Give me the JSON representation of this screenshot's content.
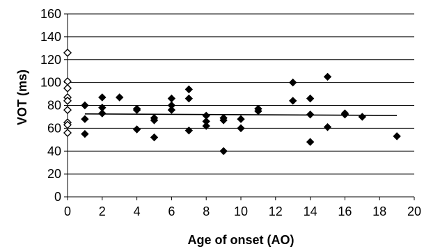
{
  "chart_data": {
    "type": "scatter",
    "xlabel": "Age of onset (AO)",
    "ylabel": "VOT (ms)",
    "xlim": [
      0,
      20
    ],
    "ylim": [
      0,
      160
    ],
    "x_ticks": [
      0,
      2,
      4,
      6,
      8,
      10,
      12,
      14,
      16,
      18,
      20
    ],
    "y_ticks": [
      0,
      20,
      40,
      60,
      80,
      100,
      120,
      140,
      160
    ],
    "grid": "horizontal",
    "series": [
      {
        "marker": "open-diamond",
        "color": "#000000",
        "points": [
          [
            0,
            126
          ],
          [
            0,
            101
          ],
          [
            0,
            95
          ],
          [
            0,
            87
          ],
          [
            0,
            84
          ],
          [
            0,
            76
          ],
          [
            0,
            65
          ],
          [
            0,
            63
          ],
          [
            0,
            56
          ]
        ]
      },
      {
        "marker": "filled-diamond",
        "color": "#000000",
        "points": [
          [
            1,
            80
          ],
          [
            1,
            68
          ],
          [
            1,
            55
          ],
          [
            2,
            87
          ],
          [
            2,
            78
          ],
          [
            2,
            73
          ],
          [
            3,
            87
          ],
          [
            4,
            77
          ],
          [
            4,
            76
          ],
          [
            4,
            59
          ],
          [
            5,
            69
          ],
          [
            5,
            67
          ],
          [
            5,
            52
          ],
          [
            6,
            86
          ],
          [
            6,
            80
          ],
          [
            6,
            76
          ],
          [
            7,
            94
          ],
          [
            7,
            86
          ],
          [
            7,
            58
          ],
          [
            8,
            71
          ],
          [
            8,
            66
          ],
          [
            8,
            62
          ],
          [
            9,
            69
          ],
          [
            9,
            67
          ],
          [
            9,
            40
          ],
          [
            10,
            68
          ],
          [
            10,
            60
          ],
          [
            11,
            77
          ],
          [
            11,
            75
          ],
          [
            13,
            100
          ],
          [
            13,
            84
          ],
          [
            14,
            86
          ],
          [
            14,
            72
          ],
          [
            14,
            48
          ],
          [
            15,
            105
          ],
          [
            15,
            61
          ],
          [
            16,
            73
          ],
          [
            16,
            72
          ],
          [
            17,
            70
          ],
          [
            19,
            53
          ]
        ]
      }
    ],
    "trendline": {
      "x": [
        1,
        19
      ],
      "y": [
        72.5,
        71.2
      ]
    }
  }
}
